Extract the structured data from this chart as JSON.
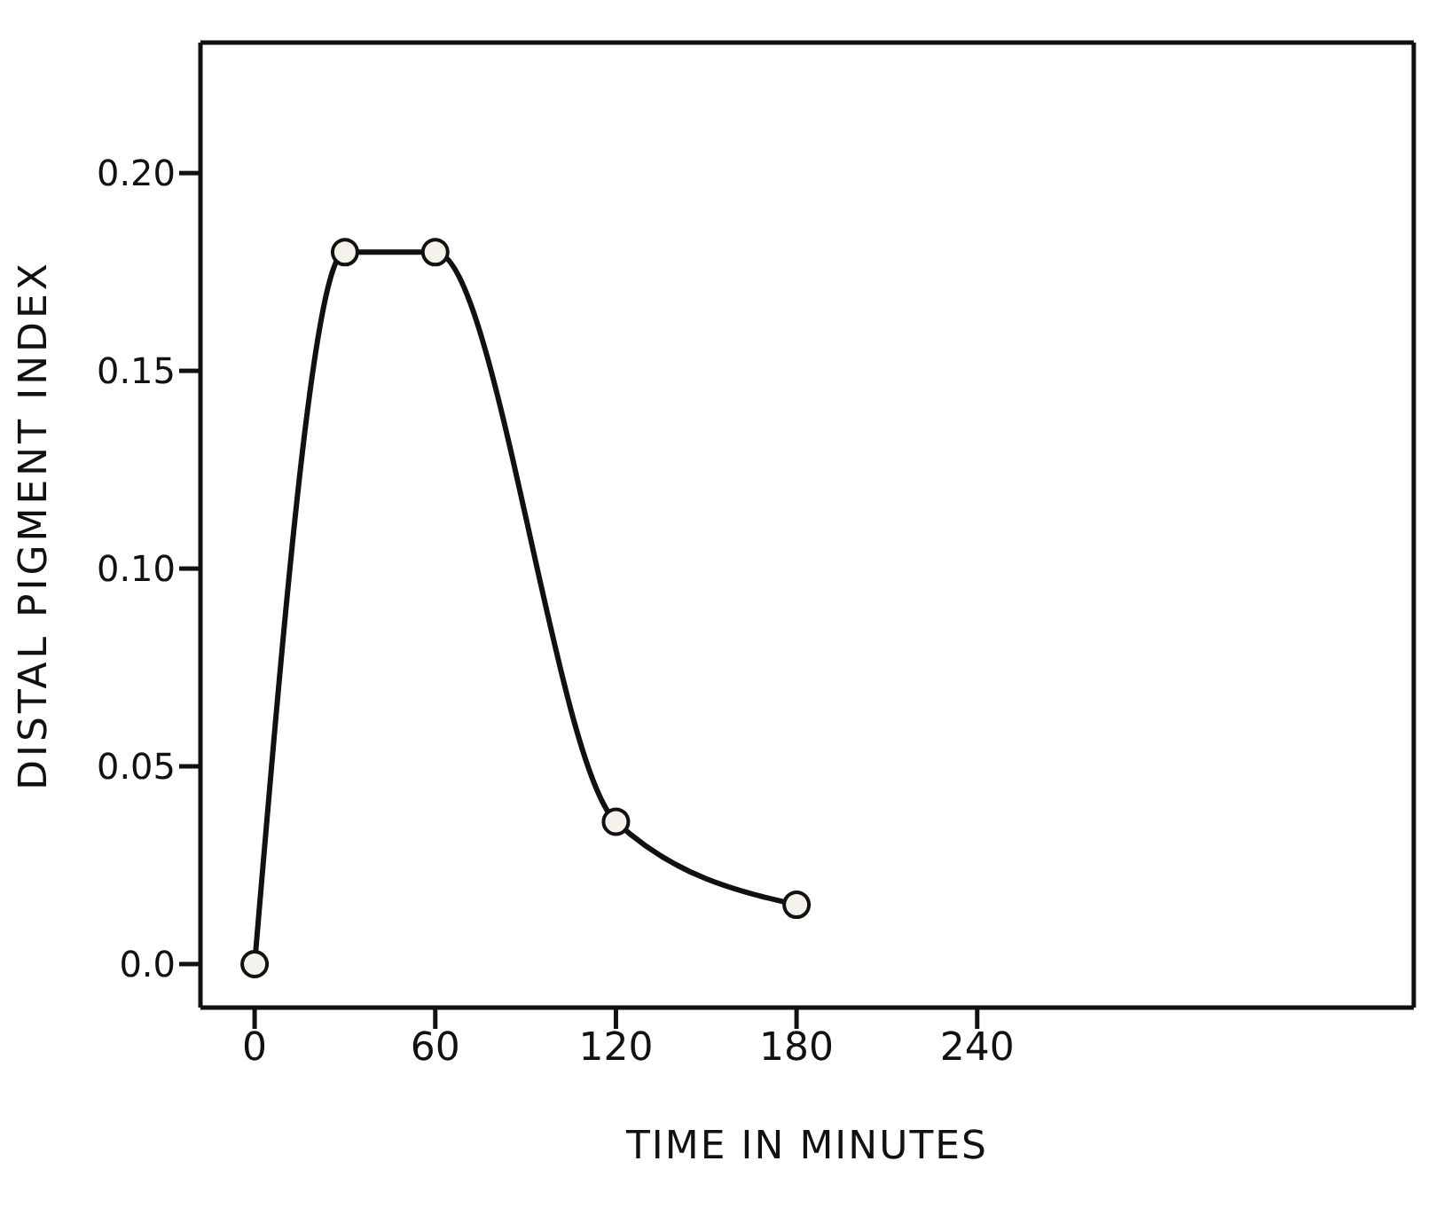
{
  "chart_data": {
    "type": "line",
    "xlabel": "TIME IN MINUTES",
    "ylabel": "DISTAL PIGMENT INDEX",
    "x": [
      0,
      30,
      60,
      120,
      180
    ],
    "series": [
      {
        "color": "#111111",
        "values": [
          0,
          0.18,
          0.18,
          0.036,
          0.015
        ]
      }
    ],
    "xlim": [
      -18,
      385
    ],
    "xticks": [
      0,
      60,
      120,
      180,
      240
    ],
    "ylim": [
      -0.011,
      0.233
    ],
    "yticks": [
      {
        "value": 0,
        "label": "0.0"
      },
      0.05,
      {
        "value": 0.1,
        "label": "0.10"
      },
      0.15,
      {
        "value": 0.2,
        "label": "0.20"
      }
    ],
    "marker": "circle",
    "line_style": "solid",
    "legend": false
  }
}
